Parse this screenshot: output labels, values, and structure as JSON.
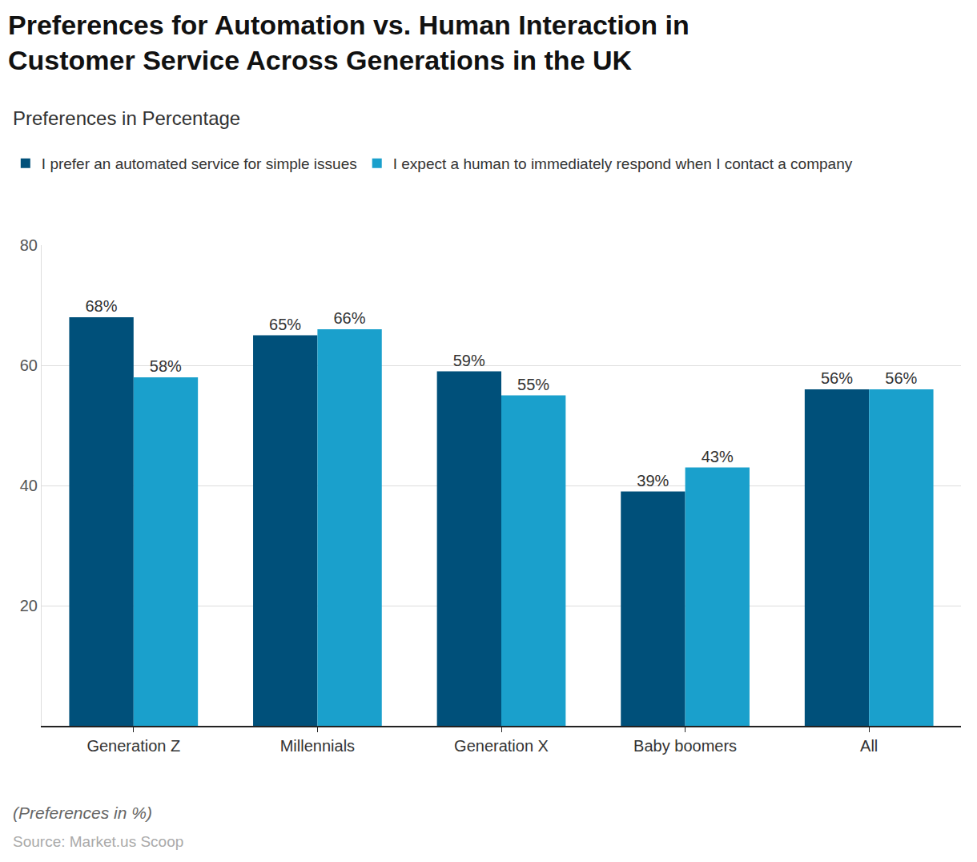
{
  "chart_data": {
    "type": "bar",
    "title": "Preferences for Automation vs. Human Interaction in Customer Service Across Generations in the UK",
    "subtitle": "Preferences in Percentage",
    "categories": [
      "Generation Z",
      "Millennials",
      "Generation X",
      "Baby boomers",
      "All"
    ],
    "series": [
      {
        "name": "I prefer an automated service for simple issues",
        "color": "#00507a",
        "values": [
          68,
          65,
          59,
          39,
          56
        ],
        "value_labels": [
          "68%",
          "65%",
          "59%",
          "39%",
          "56%"
        ]
      },
      {
        "name": "I expect a human to immediately respond when I contact a company",
        "color": "#1aa0cc",
        "values": [
          58,
          66,
          55,
          43,
          56
        ],
        "value_labels": [
          "58%",
          "66%",
          "55%",
          "43%",
          "56%"
        ]
      }
    ],
    "ylim": [
      0,
      80
    ],
    "yticks": [
      20,
      40,
      60,
      80
    ],
    "grid": true,
    "legend": "top",
    "data_labels": true,
    "annotations": [
      "(Preferences in %)",
      "Source: Market.us Scoop"
    ]
  }
}
